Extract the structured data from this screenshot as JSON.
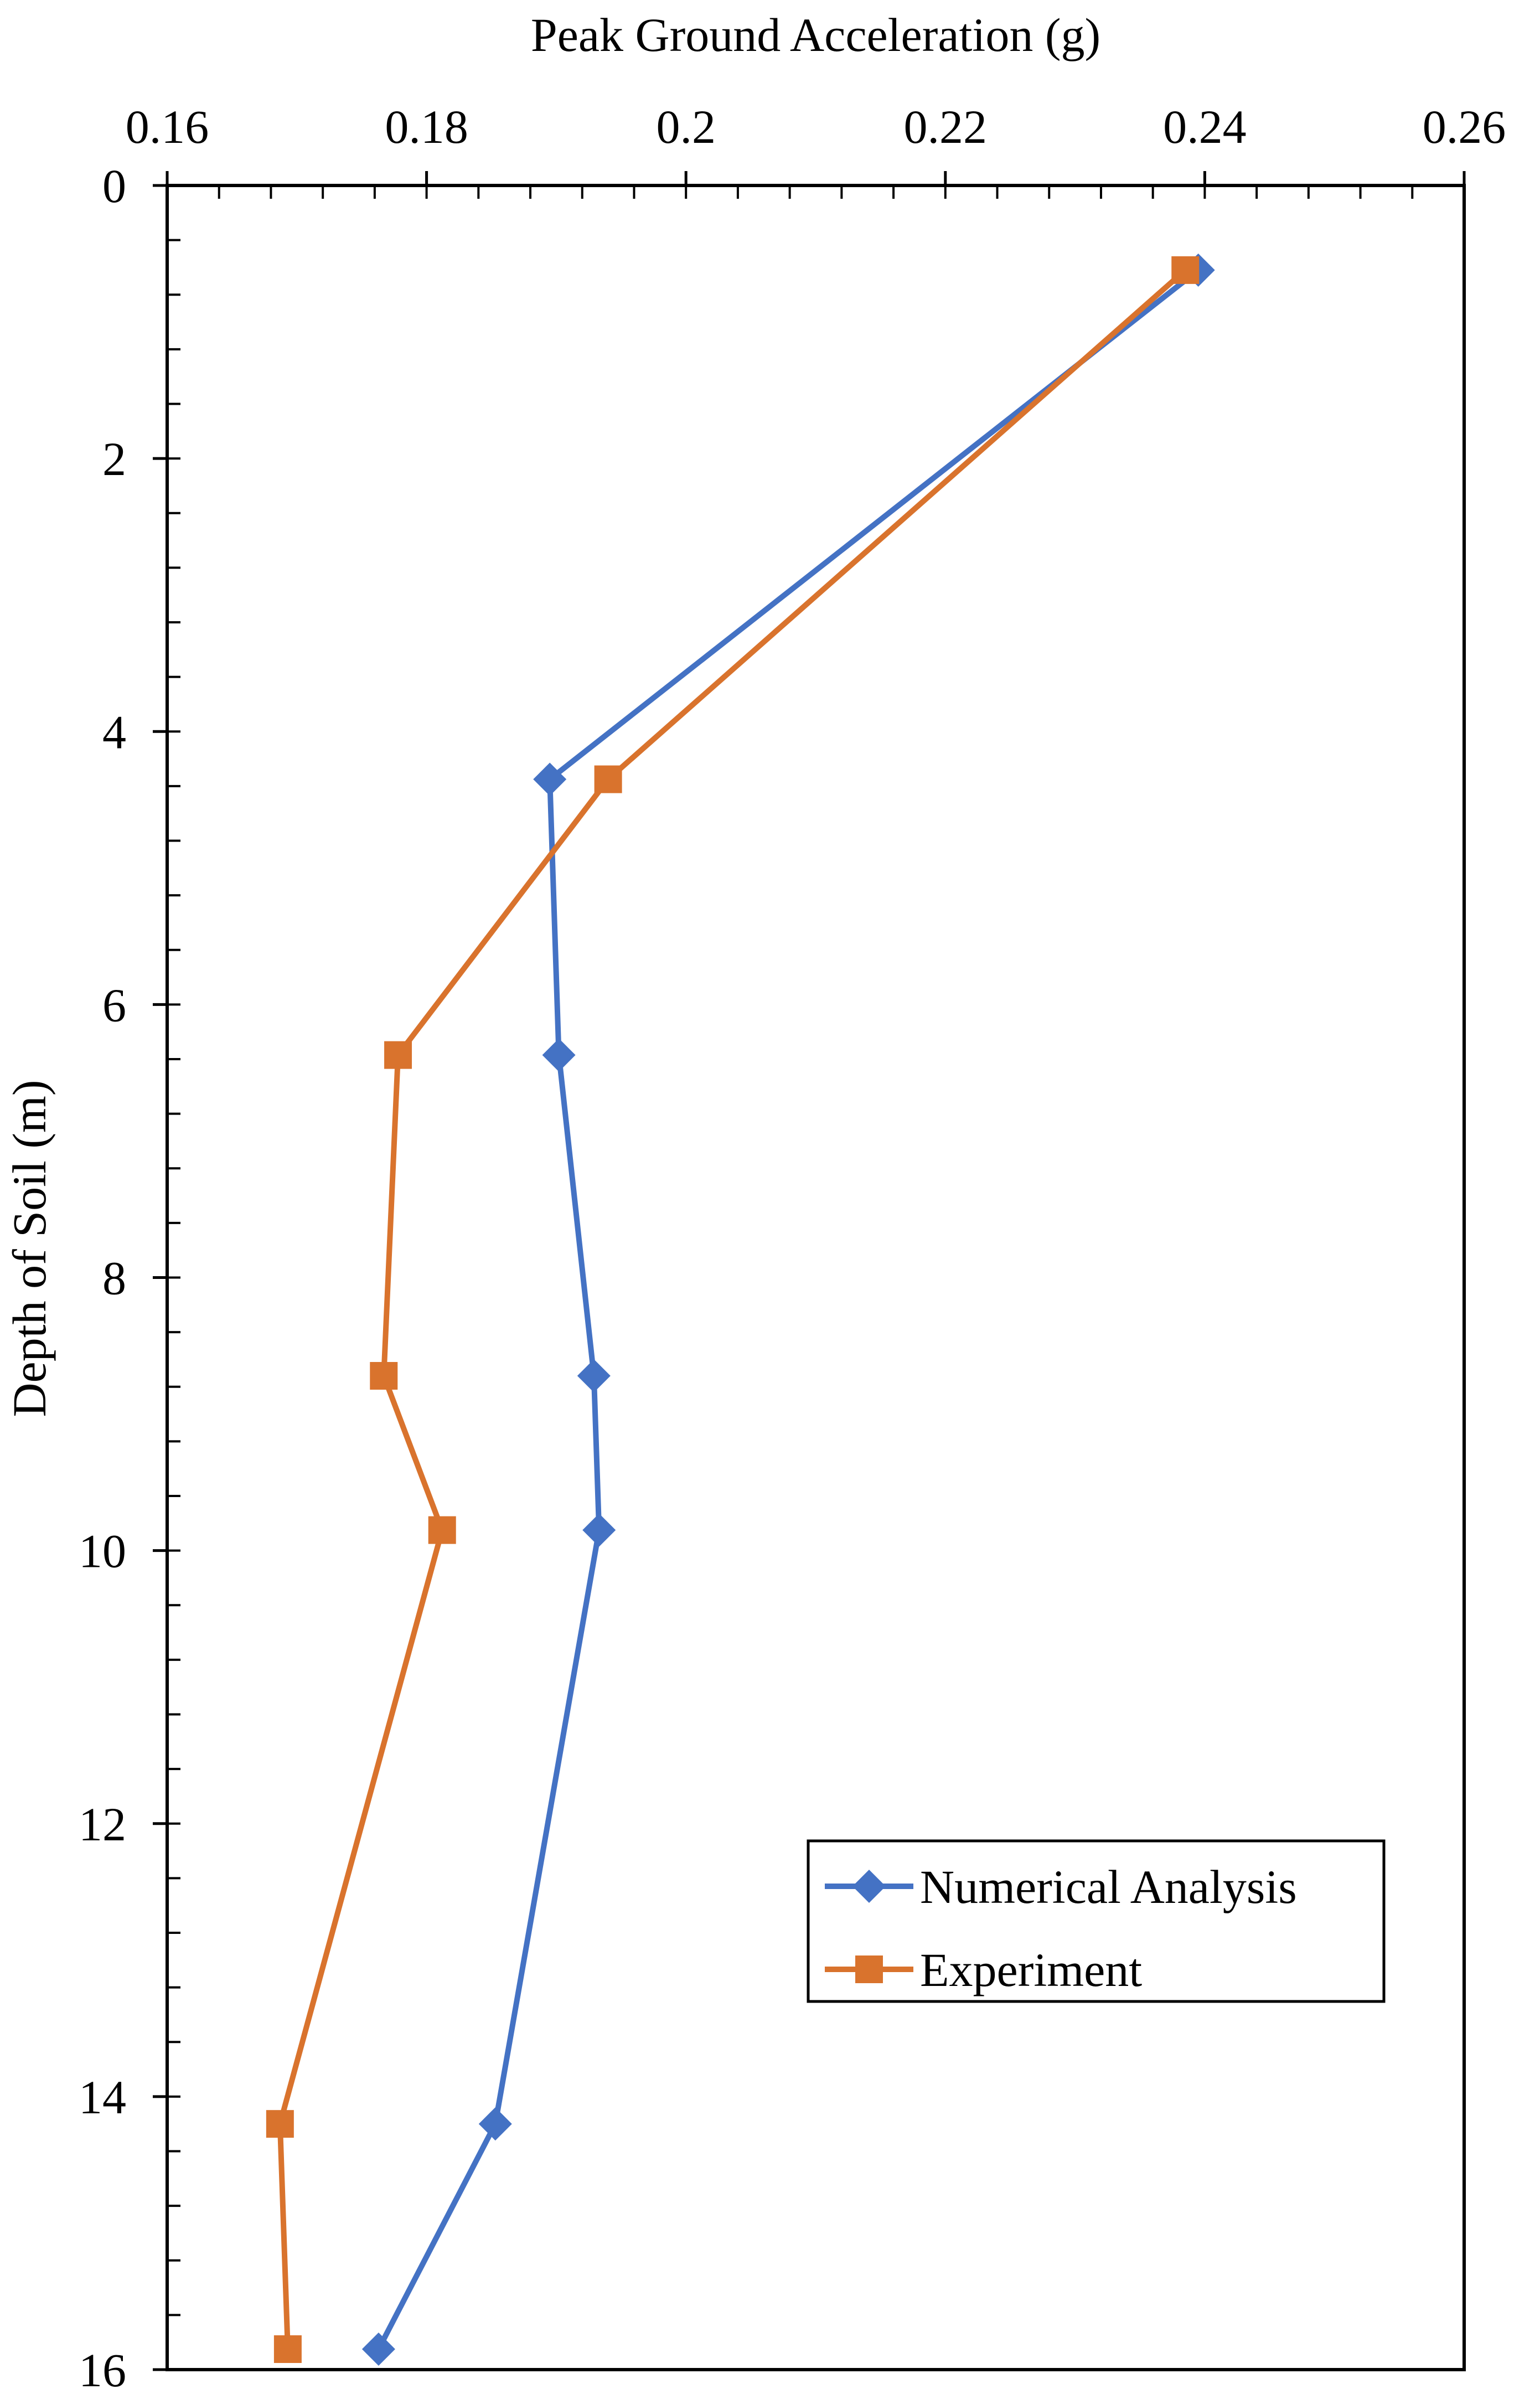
{
  "chart_data": {
    "type": "line",
    "title": "",
    "xlabel": "Peak Ground Acceleration (g)",
    "ylabel": "Depth of Soil (m)",
    "x_axis_position": "top",
    "y_axis_inverted": true,
    "xlim": [
      0.16,
      0.26
    ],
    "ylim": [
      0,
      16
    ],
    "x_ticks": [
      "0.16",
      "0.18",
      "0.2",
      "0.22",
      "0.24",
      "0.26"
    ],
    "y_ticks": [
      "0",
      "2",
      "4",
      "6",
      "8",
      "10",
      "12",
      "14",
      "16"
    ],
    "x_tick_values": [
      0.16,
      0.18,
      0.2,
      0.22,
      0.24,
      0.26
    ],
    "y_tick_values": [
      0,
      2,
      4,
      6,
      8,
      10,
      12,
      14,
      16
    ],
    "x_minor_step": 0.004,
    "y_minor_step": 0.4,
    "grid": false,
    "legend_position": "bottom-right",
    "series": [
      {
        "name": "Numerical Analysis",
        "color": "#4472C4",
        "marker": "diamond",
        "x": [
          0.2395,
          0.1895,
          0.1902,
          0.1929,
          0.1933,
          0.1853,
          0.1763
        ],
        "y": [
          0.62,
          4.35,
          6.37,
          8.72,
          9.85,
          14.2,
          15.85
        ]
      },
      {
        "name": "Experiment",
        "color": "#D9732D",
        "marker": "square",
        "x": [
          0.2385,
          0.194,
          0.1778,
          0.1767,
          0.1812,
          0.1687,
          0.1693
        ],
        "y": [
          0.62,
          4.35,
          6.37,
          8.72,
          9.85,
          14.2,
          15.85
        ]
      }
    ]
  }
}
